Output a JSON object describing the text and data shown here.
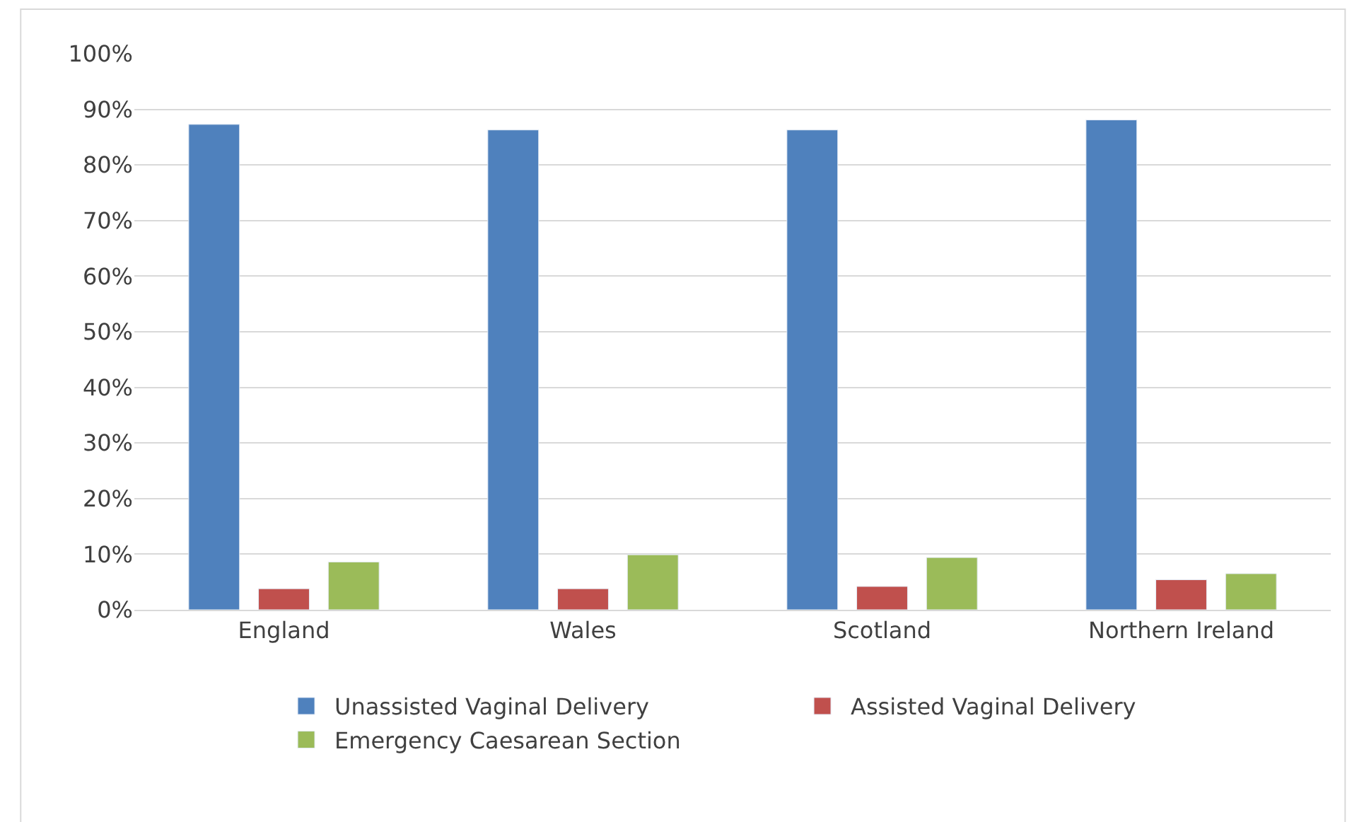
{
  "chart_data": {
    "type": "bar",
    "categories": [
      "England",
      "Wales",
      "Scotland",
      "Northern Ireland"
    ],
    "series": [
      {
        "name": "Unassisted Vaginal Delivery",
        "color": "#4f81bd",
        "values": [
          87.3,
          86.3,
          86.3,
          88.1
        ]
      },
      {
        "name": "Assisted Vaginal Delivery",
        "color": "#c0504d",
        "values": [
          3.8,
          3.8,
          4.2,
          5.4
        ]
      },
      {
        "name": "Emergency Caesarean Section",
        "color": "#9bbb59",
        "values": [
          8.6,
          9.9,
          9.4,
          6.5
        ]
      }
    ],
    "ylim": [
      0,
      100
    ],
    "yticks": [
      {
        "value": 0,
        "label": "0%"
      },
      {
        "value": 10,
        "label": "10%"
      },
      {
        "value": 20,
        "label": "20%"
      },
      {
        "value": 30,
        "label": "30%"
      },
      {
        "value": 40,
        "label": "40%"
      },
      {
        "value": 50,
        "label": "50%"
      },
      {
        "value": 60,
        "label": "60%"
      },
      {
        "value": 70,
        "label": "70%"
      },
      {
        "value": 80,
        "label": "80%"
      },
      {
        "value": 90,
        "label": "90%"
      },
      {
        "value": 100,
        "label": "100%"
      }
    ],
    "grid": "y",
    "legend": "bottom"
  }
}
